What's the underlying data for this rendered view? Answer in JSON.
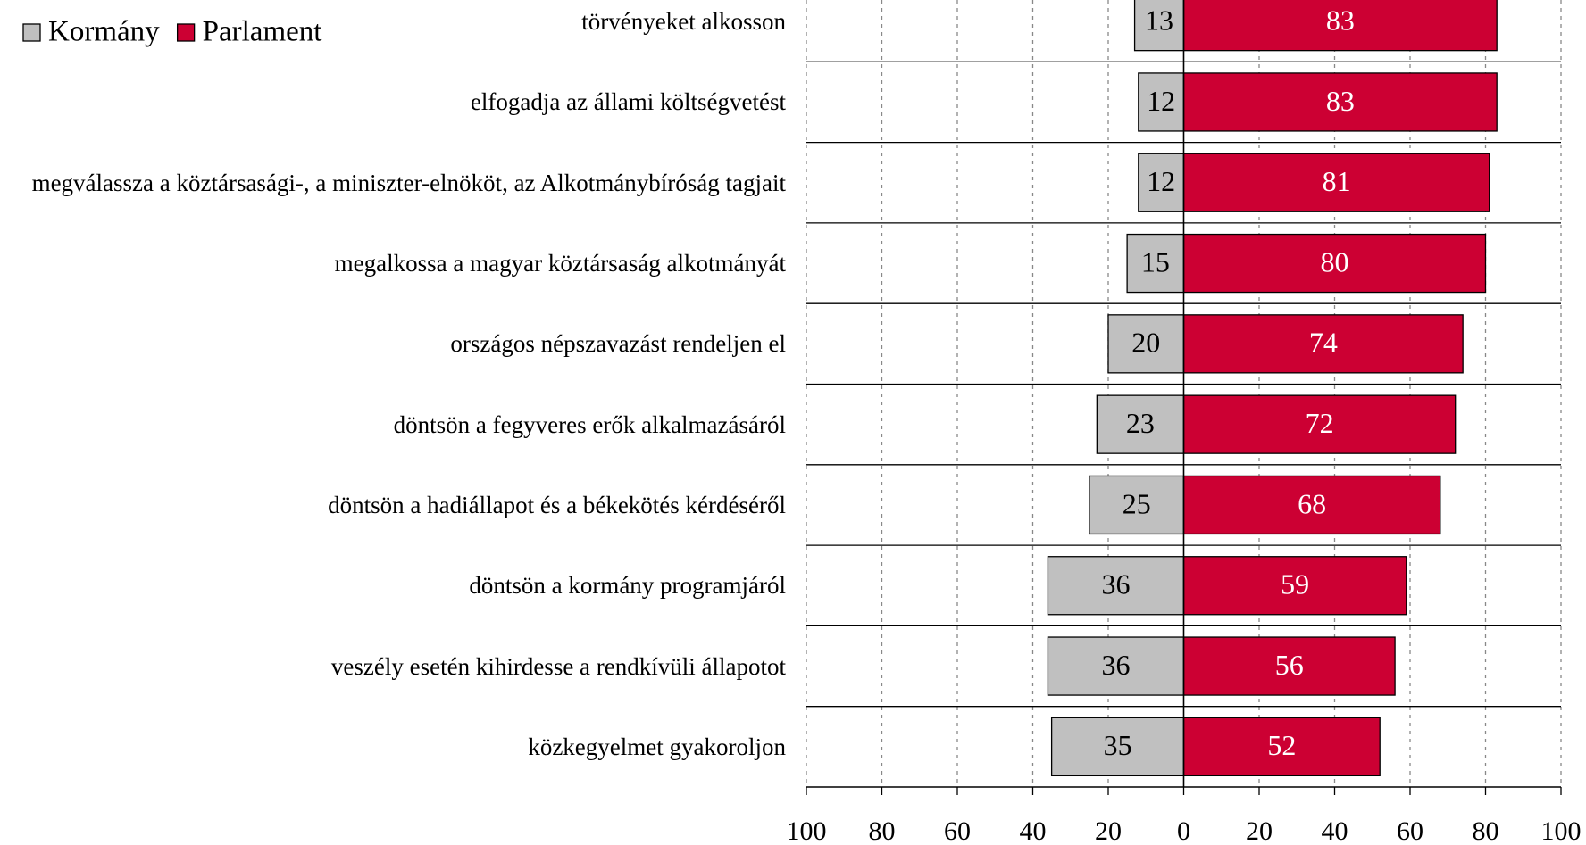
{
  "chart_data": {
    "type": "bar",
    "orientation": "horizontal",
    "stacked": "diverging",
    "categories": [
      "törvényeket alkosson",
      "elfogadja az állami költségvetést",
      "megválassza a köztársasági-,  a miniszter-elnököt, az Alkotmánybíróság tagjait",
      "megalkossa a magyar köztársaság alkotmányát",
      "országos népszavazást rendeljen el",
      "döntsön a fegyveres erők alkalmazásáról",
      "döntsön a hadiállapot és a békekötés kérdéséről",
      "döntsön a kormány programjáról",
      "veszély esetén kihirdesse a rendkívüli állapotot",
      "közkegyelmet gyakoroljon"
    ],
    "series": [
      {
        "name": "Kormány",
        "color": "#c0c0c0",
        "label_color": "#000000",
        "values": [
          -13,
          -12,
          -12,
          -15,
          -20,
          -23,
          -25,
          -36,
          -36,
          -35
        ],
        "value_labels": [
          "13",
          "12",
          "12",
          "15",
          "20",
          "23",
          "25",
          "36",
          "36",
          "35"
        ]
      },
      {
        "name": "Parlament",
        "color": "#cc0033",
        "label_color": "#ffffff",
        "values": [
          83,
          83,
          81,
          80,
          74,
          72,
          68,
          59,
          56,
          52
        ]
      }
    ],
    "xlim": [
      -100,
      100
    ],
    "xticks": [
      {
        "value": -100,
        "label": "100"
      },
      {
        "value": -80,
        "label": "80"
      },
      {
        "value": -60,
        "label": "60"
      },
      {
        "value": -40,
        "label": "40"
      },
      {
        "value": -20,
        "label": "20"
      },
      0,
      20,
      40,
      60,
      80,
      100
    ],
    "grid": true,
    "legend": "top-left"
  }
}
